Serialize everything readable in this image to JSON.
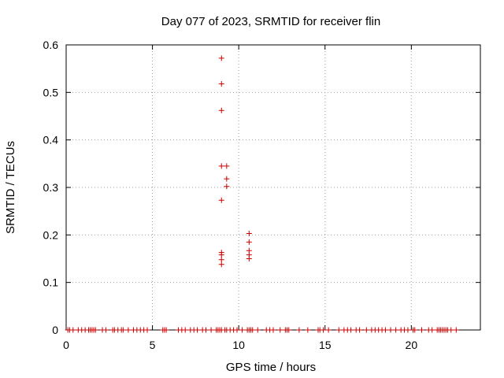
{
  "chart_data": {
    "type": "scatter",
    "title": "Day 077 of 2023, SRMTID for receiver flin",
    "xlabel": "GPS time / hours",
    "ylabel": "SRMTID / TECUs",
    "xlim": [
      0,
      24
    ],
    "ylim": [
      0,
      0.6
    ],
    "x_ticks": [
      0,
      5,
      10,
      15,
      20
    ],
    "y_ticks": [
      0,
      0.1,
      0.2,
      0.3,
      0.4,
      0.5,
      0.6
    ],
    "x_tick_labels": [
      "0",
      "5",
      "10",
      "15",
      "20"
    ],
    "y_tick_labels": [
      "0",
      "0.1",
      "0.2",
      "0.3",
      "0.4",
      "0.5",
      "0.6"
    ],
    "grid": true,
    "marker": "+",
    "series": [
      {
        "name": "SRMTID",
        "color": "#cc0000",
        "points": [
          {
            "x": 9.0,
            "y": 0.572
          },
          {
            "x": 9.0,
            "y": 0.518
          },
          {
            "x": 9.0,
            "y": 0.462
          },
          {
            "x": 9.0,
            "y": 0.345
          },
          {
            "x": 9.3,
            "y": 0.345
          },
          {
            "x": 9.3,
            "y": 0.318
          },
          {
            "x": 9.3,
            "y": 0.302
          },
          {
            "x": 9.0,
            "y": 0.273
          },
          {
            "x": 10.6,
            "y": 0.203
          },
          {
            "x": 10.6,
            "y": 0.185
          },
          {
            "x": 10.6,
            "y": 0.167
          },
          {
            "x": 10.6,
            "y": 0.158
          },
          {
            "x": 10.6,
            "y": 0.15
          },
          {
            "x": 9.0,
            "y": 0.163
          },
          {
            "x": 9.0,
            "y": 0.158
          },
          {
            "x": 9.0,
            "y": 0.148
          },
          {
            "x": 9.0,
            "y": 0.138
          },
          {
            "x": 0.1,
            "y": 0
          },
          {
            "x": 0.2,
            "y": 0
          },
          {
            "x": 0.4,
            "y": 0
          },
          {
            "x": 0.7,
            "y": 0
          },
          {
            "x": 0.9,
            "y": 0
          },
          {
            "x": 1.1,
            "y": 0
          },
          {
            "x": 1.3,
            "y": 0
          },
          {
            "x": 1.4,
            "y": 0
          },
          {
            "x": 1.5,
            "y": 0
          },
          {
            "x": 1.6,
            "y": 0
          },
          {
            "x": 1.7,
            "y": 0
          },
          {
            "x": 2.1,
            "y": 0
          },
          {
            "x": 2.3,
            "y": 0
          },
          {
            "x": 2.7,
            "y": 0
          },
          {
            "x": 2.8,
            "y": 0
          },
          {
            "x": 3.0,
            "y": 0
          },
          {
            "x": 3.2,
            "y": 0
          },
          {
            "x": 3.3,
            "y": 0
          },
          {
            "x": 3.6,
            "y": 0
          },
          {
            "x": 3.9,
            "y": 0
          },
          {
            "x": 4.1,
            "y": 0
          },
          {
            "x": 4.3,
            "y": 0
          },
          {
            "x": 4.5,
            "y": 0
          },
          {
            "x": 4.7,
            "y": 0
          },
          {
            "x": 5.6,
            "y": 0
          },
          {
            "x": 5.7,
            "y": 0
          },
          {
            "x": 5.8,
            "y": 0
          },
          {
            "x": 6.5,
            "y": 0
          },
          {
            "x": 6.7,
            "y": 0
          },
          {
            "x": 6.9,
            "y": 0
          },
          {
            "x": 7.2,
            "y": 0
          },
          {
            "x": 7.4,
            "y": 0
          },
          {
            "x": 7.6,
            "y": 0
          },
          {
            "x": 7.9,
            "y": 0
          },
          {
            "x": 8.1,
            "y": 0
          },
          {
            "x": 8.4,
            "y": 0
          },
          {
            "x": 8.7,
            "y": 0
          },
          {
            "x": 8.8,
            "y": 0
          },
          {
            "x": 8.9,
            "y": 0
          },
          {
            "x": 9.0,
            "y": 0
          },
          {
            "x": 9.2,
            "y": 0
          },
          {
            "x": 9.3,
            "y": 0
          },
          {
            "x": 9.5,
            "y": 0
          },
          {
            "x": 9.7,
            "y": 0
          },
          {
            "x": 9.9,
            "y": 0
          },
          {
            "x": 10.2,
            "y": 0
          },
          {
            "x": 10.5,
            "y": 0
          },
          {
            "x": 10.6,
            "y": 0
          },
          {
            "x": 10.7,
            "y": 0
          },
          {
            "x": 10.8,
            "y": 0
          },
          {
            "x": 11.1,
            "y": 0
          },
          {
            "x": 11.6,
            "y": 0
          },
          {
            "x": 11.8,
            "y": 0
          },
          {
            "x": 12.0,
            "y": 0
          },
          {
            "x": 12.4,
            "y": 0
          },
          {
            "x": 12.7,
            "y": 0
          },
          {
            "x": 12.8,
            "y": 0
          },
          {
            "x": 12.9,
            "y": 0
          },
          {
            "x": 13.5,
            "y": 0
          },
          {
            "x": 14.0,
            "y": 0
          },
          {
            "x": 14.6,
            "y": 0
          },
          {
            "x": 14.7,
            "y": 0
          },
          {
            "x": 14.9,
            "y": 0
          },
          {
            "x": 15.2,
            "y": 0
          },
          {
            "x": 15.8,
            "y": 0
          },
          {
            "x": 16.1,
            "y": 0
          },
          {
            "x": 16.3,
            "y": 0
          },
          {
            "x": 16.5,
            "y": 0
          },
          {
            "x": 16.8,
            "y": 0
          },
          {
            "x": 17.0,
            "y": 0
          },
          {
            "x": 17.4,
            "y": 0
          },
          {
            "x": 17.7,
            "y": 0
          },
          {
            "x": 17.9,
            "y": 0
          },
          {
            "x": 18.1,
            "y": 0
          },
          {
            "x": 18.3,
            "y": 0
          },
          {
            "x": 18.5,
            "y": 0
          },
          {
            "x": 18.8,
            "y": 0
          },
          {
            "x": 19.1,
            "y": 0
          },
          {
            "x": 19.4,
            "y": 0
          },
          {
            "x": 19.6,
            "y": 0
          },
          {
            "x": 19.8,
            "y": 0
          },
          {
            "x": 20.1,
            "y": 0
          },
          {
            "x": 20.2,
            "y": 0
          },
          {
            "x": 20.6,
            "y": 0
          },
          {
            "x": 21.0,
            "y": 0
          },
          {
            "x": 21.2,
            "y": 0
          },
          {
            "x": 21.5,
            "y": 0
          },
          {
            "x": 21.6,
            "y": 0
          },
          {
            "x": 21.7,
            "y": 0
          },
          {
            "x": 21.8,
            "y": 0
          },
          {
            "x": 21.9,
            "y": 0
          },
          {
            "x": 22.0,
            "y": 0
          },
          {
            "x": 22.1,
            "y": 0
          },
          {
            "x": 22.3,
            "y": 0
          },
          {
            "x": 22.6,
            "y": 0
          }
        ]
      }
    ]
  }
}
